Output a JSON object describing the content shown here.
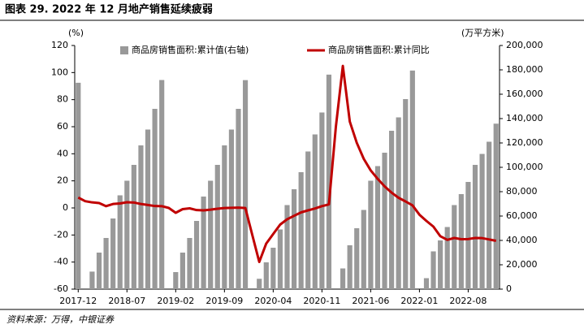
{
  "chart_data": {
    "type": "combo",
    "title": "图表 29. 2022 年 12 月地产销售延续疲弱",
    "source": "资料来源：万得，中银证券",
    "ylabel": "(%)",
    "y2label": "(万平方米)",
    "categories": [
      "2017-12",
      null,
      null,
      null,
      null,
      null,
      null,
      "2018-07",
      null,
      null,
      null,
      null,
      null,
      null,
      "2019-02",
      null,
      null,
      null,
      null,
      null,
      null,
      "2019-09",
      null,
      null,
      null,
      null,
      null,
      null,
      "2020-04",
      null,
      null,
      null,
      null,
      null,
      null,
      "2020-11",
      null,
      null,
      null,
      null,
      null,
      null,
      "2021-06",
      null,
      null,
      null,
      null,
      null,
      null,
      "2022-01",
      null,
      null,
      null,
      null,
      null,
      null,
      "2022-08",
      null,
      null,
      null,
      null
    ],
    "ylim": [
      -60,
      120
    ],
    "yticks": [
      -60,
      -40,
      -20,
      0,
      20,
      40,
      60,
      80,
      100,
      120
    ],
    "y2lim": [
      0,
      200000
    ],
    "y2ticks": [
      0,
      {
        "value": 20000,
        "label": "20,000"
      },
      {
        "value": 40000,
        "label": "40,000"
      },
      {
        "value": 60000,
        "label": "60,000"
      },
      {
        "value": 80000,
        "label": "80,000"
      },
      {
        "value": 100000,
        "label": "100,000"
      },
      {
        "value": 120000,
        "label": "120,000"
      },
      {
        "value": 140000,
        "label": "140,000"
      },
      {
        "value": 160000,
        "label": "160,000"
      },
      {
        "value": 180000,
        "label": "180,000"
      },
      {
        "value": 200000,
        "label": "200,000"
      }
    ],
    "series": [
      {
        "name": "商品房销售面积:累计值(右轴)",
        "type": "bar",
        "axis": "y2",
        "color": "#999999",
        "values": [
          169408,
          null,
          14400,
          30000,
          42000,
          58000,
          77000,
          89000,
          102000,
          118000,
          131000,
          148000,
          171654,
          null,
          14000,
          30000,
          42000,
          56000,
          76000,
          89000,
          102000,
          118000,
          131000,
          148000,
          171558,
          null,
          8500,
          22000,
          34000,
          49000,
          69000,
          82000,
          96000,
          113000,
          127000,
          145000,
          176086,
          null,
          17000,
          36000,
          50000,
          65000,
          89000,
          101000,
          112000,
          130000,
          141000,
          156000,
          179433,
          null,
          9000,
          31000,
          40000,
          51000,
          69000,
          78000,
          88000,
          102000,
          111000,
          121000,
          135837
        ]
      },
      {
        "name": "商品房销售面积:累计同比",
        "type": "line",
        "axis": "y",
        "color": "#c00000",
        "values": [
          7.7,
          5,
          4.1,
          3.6,
          1.3,
          2.9,
          3.3,
          4.2,
          4.0,
          2.9,
          2.2,
          1.4,
          1.3,
          0,
          -3.6,
          -0.9,
          -0.3,
          -1.6,
          -1.8,
          -1.3,
          -0.6,
          -0.1,
          0.1,
          0.2,
          -0.1,
          -20,
          -39.9,
          -26.3,
          -19.3,
          -12.3,
          -8.4,
          -5.8,
          -3.3,
          -1.8,
          -0.4,
          1.3,
          2.6,
          60,
          104.9,
          63.8,
          48.1,
          36.3,
          27.7,
          21.5,
          15.9,
          11.3,
          7.5,
          4.8,
          1.9,
          -5,
          -9.6,
          -13.8,
          -20.9,
          -23.6,
          -22.2,
          -23.1,
          -23.0,
          -22.2,
          -22.3,
          -23.3,
          -24.3
        ]
      }
    ]
  }
}
